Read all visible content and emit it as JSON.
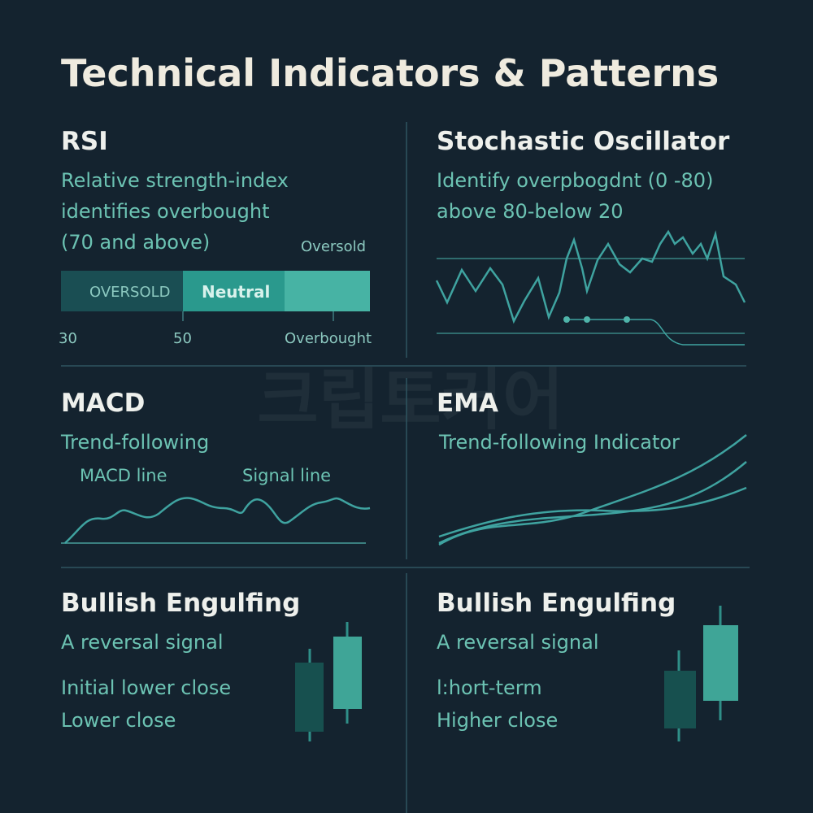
{
  "header": {
    "title": "Technical Indicators & Patterns"
  },
  "watermark": "크립토커어",
  "panels": [
    {
      "title": "RSI",
      "description": [
        "Relative strength-index",
        "identifies overbought",
        "(70 and above)"
      ],
      "bar": {
        "top_label": "Oversold",
        "segments": [
          "OVERSOLD",
          "Neutral"
        ],
        "axis_labels": [
          "30",
          "50",
          "Overbought"
        ]
      }
    },
    {
      "title": "Stochastic Oscillator",
      "description": [
        "Identify overpbogdnt (0 -80)",
        "above 80-below 20"
      ]
    },
    {
      "title": "MACD",
      "description": [
        "Trend-following"
      ],
      "line_labels": [
        "MACD line",
        "Signal line"
      ]
    },
    {
      "title": "EMA",
      "description": [
        "Trend-following Indicator"
      ]
    },
    {
      "title": "Bullish Engulfing",
      "description": [
        "A reversal signal",
        "Initial lower close",
        "Lower close"
      ]
    },
    {
      "title": "Bullish Engulfing",
      "description": [
        "A reversal signal",
        "l:hort-term",
        "Higher close"
      ]
    }
  ]
}
